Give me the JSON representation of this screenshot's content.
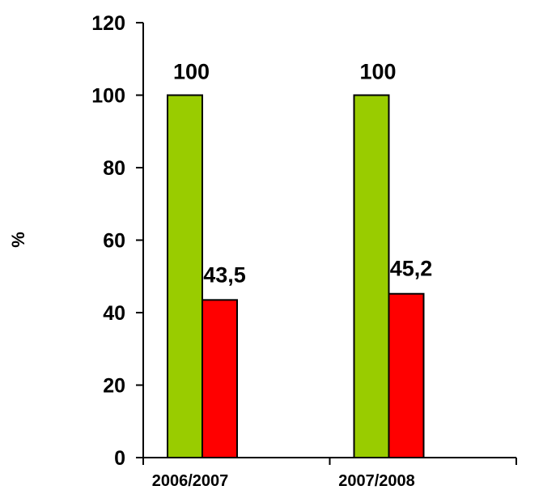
{
  "chart_data": {
    "type": "bar",
    "categories": [
      "2006/2007",
      "2007/2008"
    ],
    "series": [
      {
        "values": [
          100,
          100
        ],
        "color": "#99CC00"
      },
      {
        "values": [
          43.5,
          45.2
        ],
        "color": "#FF0000"
      }
    ],
    "data_labels": [
      [
        "100",
        "100"
      ],
      [
        "43,5",
        "45,2"
      ]
    ],
    "ylabel": "%",
    "ylim": [
      0,
      120
    ],
    "yticks": [
      "0",
      "20",
      "40",
      "60",
      "80",
      "100",
      "120"
    ],
    "xlim_categories": 2,
    "grid": false,
    "legend": "none"
  }
}
